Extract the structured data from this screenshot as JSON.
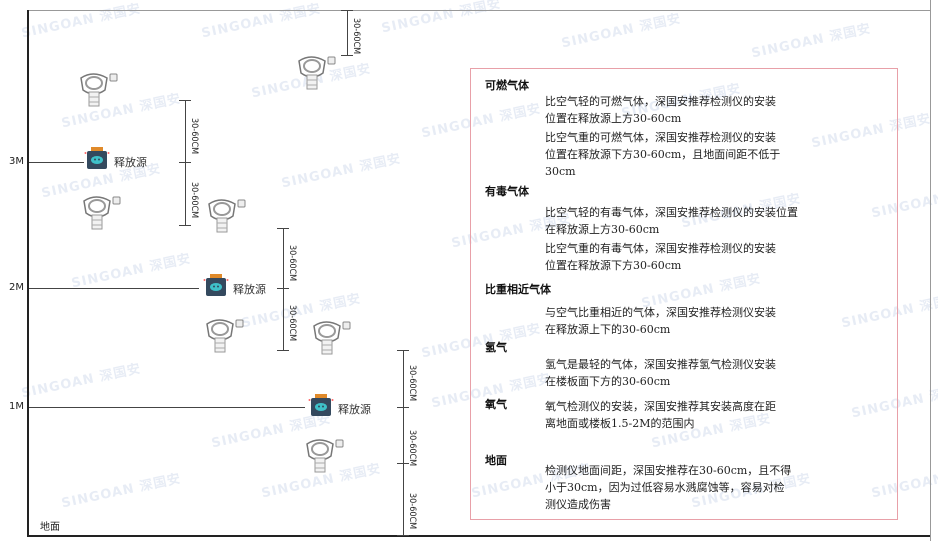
{
  "watermark": "SINGOAN 深国安",
  "levels": [
    {
      "label": "3M"
    },
    {
      "label": "2M"
    },
    {
      "label": "1M"
    }
  ],
  "source_label": "释放源",
  "dimension_label": "30-60CM",
  "floor_label": "地面",
  "colors": {
    "panel_border": "#e8a0a8",
    "source_body": "#34495e",
    "source_cap": "#e08a2a",
    "source_face": "#3fc1c9"
  },
  "panel": {
    "sections": [
      {
        "title": "可燃气体",
        "paragraphs": [
          "比空气轻的可燃气体，深国安推荐检测仪的安装\n位置在释放源上方30-60cm",
          "比空气重的可燃气体，深国安推荐检测仪的安装\n位置在释放源下方30-60cm，且地面间距不低于\n30cm"
        ]
      },
      {
        "title": "有毒气体",
        "paragraphs": [
          "比空气轻的有毒气体，深国安推荐检测仪的安装位置\n在释放源上方30-60cm",
          "比空气重的有毒气体，深国安推荐检测仪的安装\n位置在释放源下方30-60cm"
        ]
      },
      {
        "title": "比重相近气体",
        "paragraphs": [
          "与空气比重相近的气体，深国安推荐检测仪安装\n在释放源上下的30-60cm"
        ]
      },
      {
        "title": "氢气",
        "paragraphs": [
          "氢气是最轻的气体，深国安推荐氢气检测仪安装\n在楼板面下方的30-60cm"
        ]
      },
      {
        "title": "氧气",
        "paragraphs": [
          "氧气检测仪的安装，深国安推荐其安装高度在距\n离地面或楼板1.5-2M的范围内"
        ]
      },
      {
        "title": "地面",
        "paragraphs": [
          "检测仪地面间距，深国安推荐在30-60cm，且不得\n小于30cm，因为过低容易水溅腐蚀等，容易对检\n测仪造成伤害"
        ]
      }
    ]
  }
}
